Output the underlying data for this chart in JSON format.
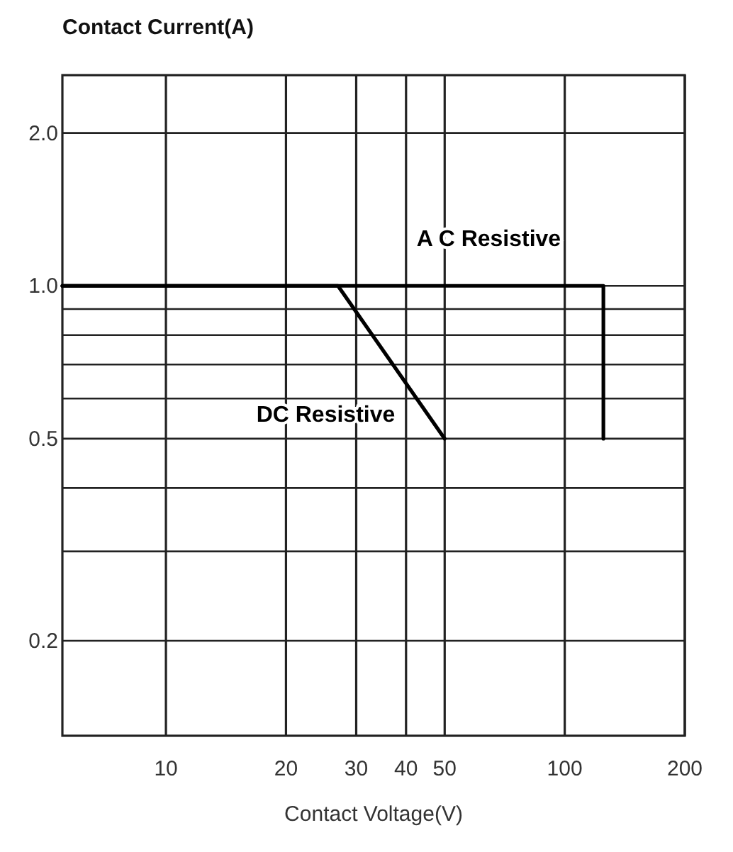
{
  "chart_data": {
    "type": "line",
    "xlabel": "Contact Voltage(V)",
    "ylabel": "Contact Current(A)",
    "log": "xy",
    "grid": true,
    "marker": "none",
    "line_style": "solid",
    "xlim": [
      5.5,
      200
    ],
    "xticks": [
      10,
      20,
      30,
      40,
      50,
      100,
      200
    ],
    "ylim": [
      0.13,
      2.6
    ],
    "yticks": [
      {
        "value": 2,
        "label": "2.0"
      },
      {
        "value": 1,
        "label": "1.0"
      },
      {
        "value": 0.9,
        "label": null
      },
      {
        "value": 0.8,
        "label": null
      },
      {
        "value": 0.7,
        "label": null
      },
      {
        "value": 0.6,
        "label": null
      },
      {
        "value": 0.5,
        "label": "0.5"
      },
      {
        "value": 0.4,
        "label": null
      },
      {
        "value": 0.3,
        "label": null
      },
      {
        "value": 0.2,
        "label": "0.2"
      }
    ],
    "series": [
      {
        "name": "A C Resistive",
        "color": "#000000",
        "x": [
          5.5,
          125,
          125
        ],
        "values": [
          1,
          1,
          0.5
        ]
      },
      {
        "name": "DC Resistive",
        "color": "#000000",
        "x": [
          5.5,
          27,
          50
        ],
        "values": [
          1,
          1,
          0.5
        ]
      }
    ]
  }
}
